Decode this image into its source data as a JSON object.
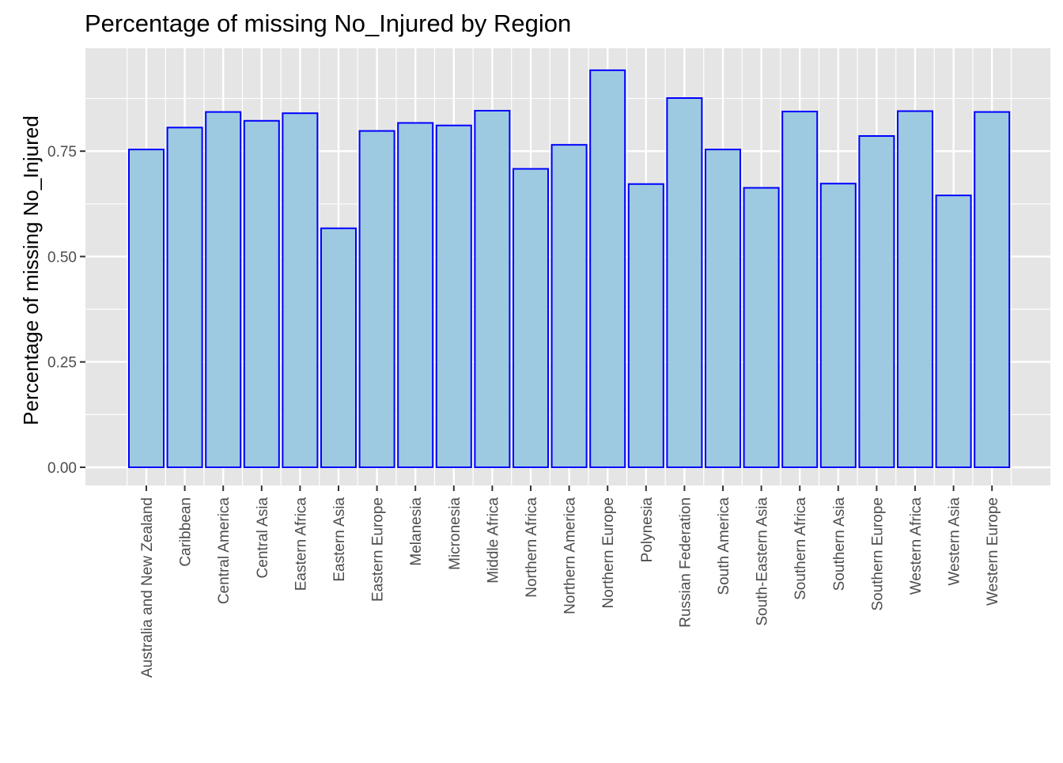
{
  "chart_data": {
    "type": "bar",
    "title": "Percentage of missing No_Injured by Region",
    "xlabel": "",
    "ylabel": "Percentage of missing No_Injured",
    "categories": [
      "Australia and New Zealand",
      "Caribbean",
      "Central America",
      "Central Asia",
      "Eastern Africa",
      "Eastern Asia",
      "Eastern Europe",
      "Melanesia",
      "Micronesia",
      "Middle Africa",
      "Northern Africa",
      "Northern America",
      "Northern Europe",
      "Polynesia",
      "Russian Federation",
      "South America",
      "South-Eastern Asia",
      "Southern Africa",
      "Southern Asia",
      "Southern Europe",
      "Western Africa",
      "Western Asia",
      "Western Europe"
    ],
    "values": [
      0.754,
      0.806,
      0.843,
      0.822,
      0.84,
      0.567,
      0.798,
      0.817,
      0.811,
      0.846,
      0.708,
      0.765,
      0.942,
      0.672,
      0.876,
      0.754,
      0.663,
      0.844,
      0.673,
      0.786,
      0.845,
      0.645,
      0.843
    ],
    "yticks": [
      0.0,
      0.25,
      0.5,
      0.75
    ],
    "ytick_labels": [
      "0.00",
      "0.25",
      "0.50",
      "0.75"
    ],
    "ylim": [
      -0.047,
      0.99
    ],
    "grid": true,
    "colors": {
      "bar_fill": "#9ecae1",
      "bar_stroke": "#0000ff",
      "panel_bg": "#e5e5e5",
      "grid": "#ffffff"
    }
  }
}
